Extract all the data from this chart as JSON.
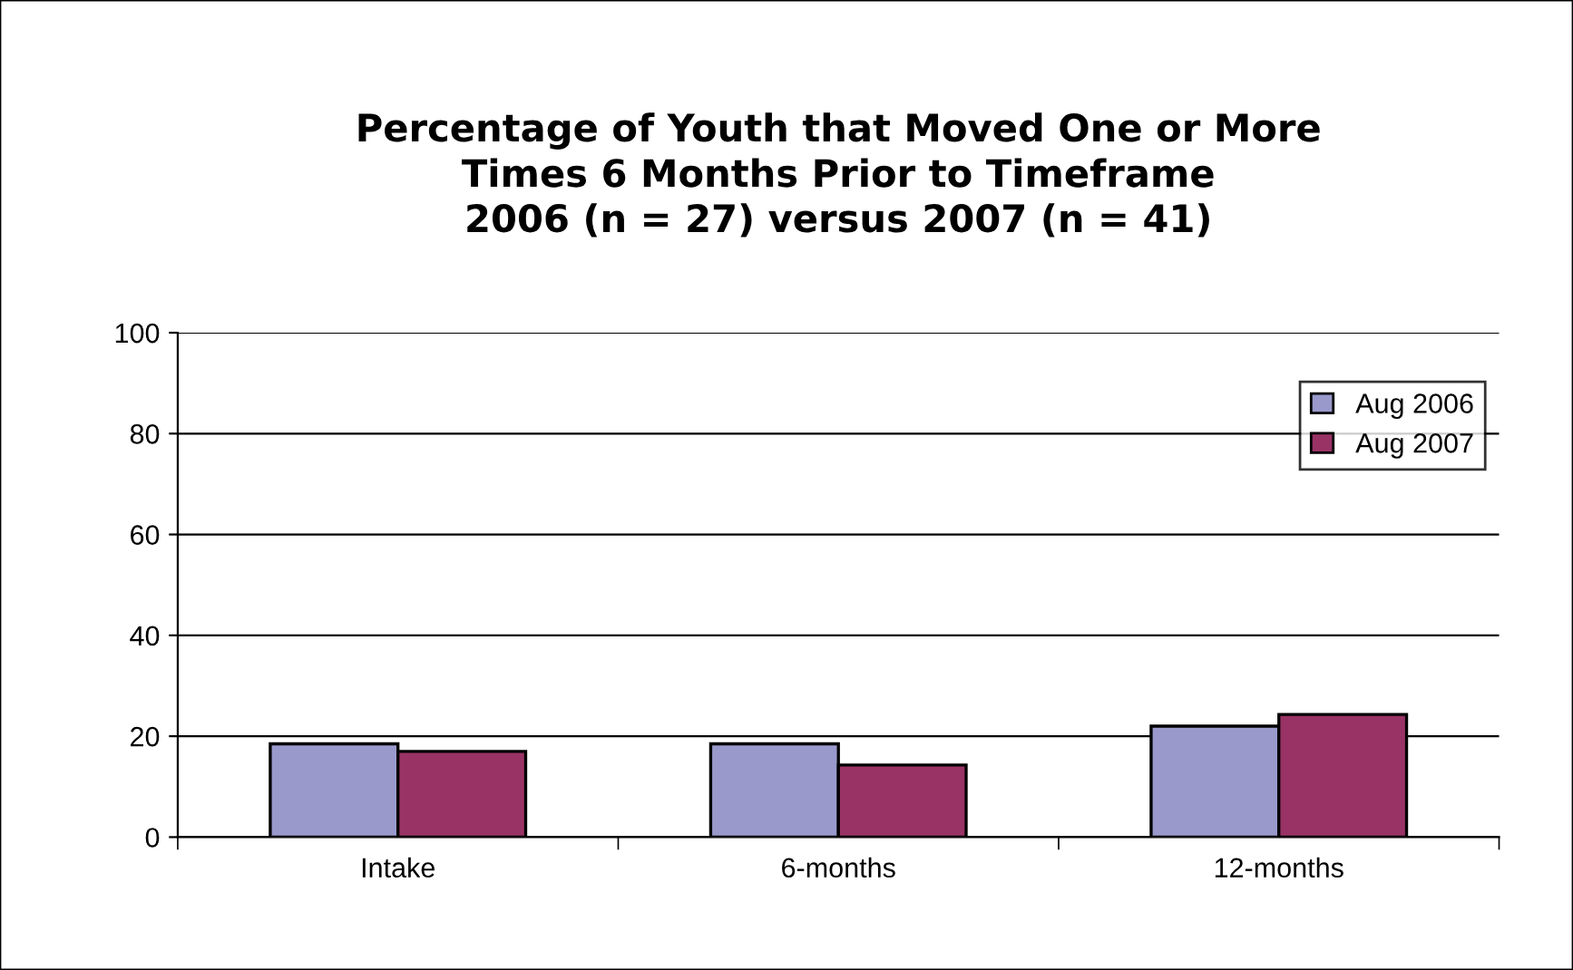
{
  "chart_data": {
    "type": "bar",
    "title": "Percentage of Youth that Moved One or More\nTimes 6 Months Prior to Timeframe\n2006 (n = 27) versus 2007 (n = 41)",
    "categories": [
      "Intake",
      "6-months",
      "12-months"
    ],
    "series": [
      {
        "name": "Aug 2006",
        "color": "#9999cc",
        "values": [
          18.5,
          18.5,
          22
        ]
      },
      {
        "name": "Aug 2007",
        "color": "#993366",
        "values": [
          17,
          14.3,
          24.3
        ]
      }
    ],
    "ylim": [
      0,
      100
    ],
    "yticks": [
      0,
      20,
      40,
      60,
      80,
      100
    ],
    "grid": "y",
    "legend": "top right"
  }
}
